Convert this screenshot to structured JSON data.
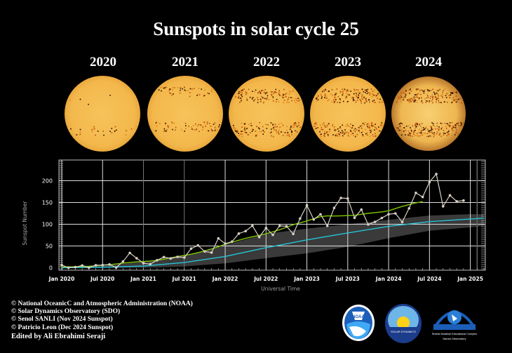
{
  "title": "Sunspots in solar cycle 25",
  "years": [
    "2020",
    "2021",
    "2022",
    "2023",
    "2024"
  ],
  "colors": {
    "sun": "#f4bb4f",
    "spot": "#c65a10",
    "observed": "#d8cfc4",
    "smoothed": "#7ec600",
    "predicted": "#26c4d8",
    "band": "#3a3a3a"
  },
  "chart_data": {
    "type": "line",
    "xlabel": "Universal Time",
    "ylabel": "Sunspot Number",
    "ylim": [
      -5,
      245
    ],
    "xlim": [
      "2019-12",
      "2025-03"
    ],
    "grid": true,
    "yticks": [
      0,
      50,
      100,
      150,
      200
    ],
    "xtick_labels": [
      "Jan 2020",
      "Jul 2020",
      "Jan 2021",
      "Jul 2021",
      "Jan 2022",
      "Jul 2022",
      "Jan 2023",
      "Jul 2023",
      "Jan 2024",
      "Jul 2024",
      "Jan 2025"
    ],
    "xticks": [
      "2020-01",
      "2020-07",
      "2021-01",
      "2021-07",
      "2022-01",
      "2022-07",
      "2023-01",
      "2023-07",
      "2024-01",
      "2024-07",
      "2025-01"
    ],
    "observed": {
      "start": "2020-01",
      "values": [
        6.2,
        0.2,
        1.5,
        5.2,
        0.2,
        5.8,
        6.1,
        7.5,
        0.6,
        14.4,
        34.0,
        21.8,
        10.4,
        8.2,
        17.2,
        24.5,
        21.2,
        25.0,
        23.4,
        44.0,
        51.3,
        37.4,
        34.8,
        67.5,
        55.3,
        59.9,
        78.5,
        84.1,
        96.5,
        70.5,
        91.4,
        75.4,
        96.3,
        95.4,
        77.6,
        113.1,
        143.6,
        110.9,
        122.8,
        96.4,
        137.4,
        160.5,
        159.1,
        114.8,
        133.6,
        99.4,
        105.4,
        114.2,
        123.0,
        124.7,
        104.9,
        136.5,
        172.0,
        162.6,
        196.8,
        215.5,
        141.1,
        166.4,
        152.5,
        154.5
      ]
    },
    "smoothed": {
      "start": "2020-01",
      "values": [
        1.9,
        2.0,
        2.3,
        2.8,
        3.4,
        4.4,
        5.7,
        7.0,
        8.7,
        10.6,
        12.2,
        13.6,
        14.4,
        15.5,
        17.1,
        19.6,
        22.8,
        25.6,
        28.3,
        31.2,
        34.6,
        38.7,
        43.3,
        48.5,
        54.0,
        58.8,
        63.2,
        67.6,
        71.3,
        74.4,
        78.2,
        82.6,
        87.4,
        92.9,
        99.0,
        103.1,
        107.5,
        112.6,
        117.5,
        119.3,
        118.8,
        119.3,
        119.9,
        120.5,
        122.9,
        125.0,
        126.8,
        128.4,
        131.0,
        136.0,
        141.0,
        145.0,
        149.0,
        152.0
      ]
    },
    "predicted": {
      "x": [
        "2020-01",
        "2020-07",
        "2021-01",
        "2021-07",
        "2022-01",
        "2022-07",
        "2023-01",
        "2023-07",
        "2024-01",
        "2024-07",
        "2025-01",
        "2025-03"
      ],
      "values": [
        0,
        1,
        4,
        12,
        26,
        46,
        64,
        80,
        95,
        106,
        112,
        114
      ],
      "upper": [
        0,
        4,
        14,
        28,
        52,
        78,
        90,
        100,
        110,
        120,
        123,
        123
      ],
      "lower": [
        0,
        0,
        0,
        3,
        10,
        22,
        33,
        48,
        68,
        85,
        93,
        96
      ]
    }
  },
  "credits": [
    "© National OceanicC and Atmospheric Administration (NOAA)",
    "© Solar Dynamics Observatory (SDO)",
    "© Senol SANLI (Nov 2024 Sunspot)",
    "© Patricio Leon (Dec 2024 Sunspot)"
  ],
  "edited_by": "Edited by Ali Ebrahimi Seraji",
  "logos": {
    "noaa": "NOAA",
    "sdo": "SOLAR DYNAMICS OBSERVATORY",
    "observatory": "Shahid Motahari Educational Complex Nahad Observatory"
  }
}
